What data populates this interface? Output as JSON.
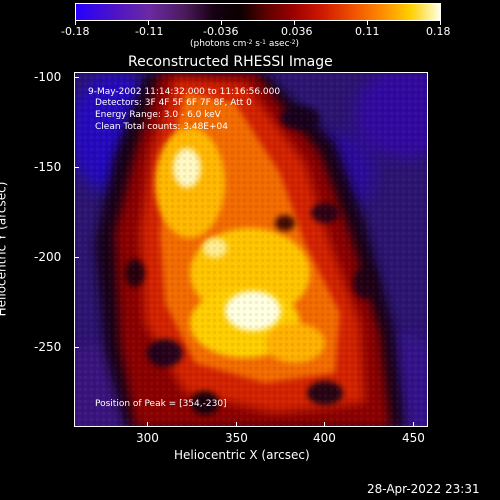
{
  "colorbar": {
    "tick_labels": [
      "-0.18",
      "-0.11",
      "-0.036",
      "0.036",
      "0.11",
      "0.18"
    ],
    "units_text": "(photons cm",
    "units_sup1": "-2",
    "units_mid1": " s",
    "units_sup2": "-1",
    "units_mid2": " asec",
    "units_sup3": "-2",
    "units_end": ")"
  },
  "plot": {
    "title": "Reconstructed RHESSI Image",
    "x_title": "Heliocentric X (arcsec)",
    "y_title": "Heliocentric Y (arcsec)",
    "x_ticks": [
      "300",
      "350",
      "400",
      "450"
    ],
    "y_ticks": [
      "-100",
      "-150",
      "-200",
      "-250"
    ],
    "annotations": [
      "9-May-2002 11:14:32.000 to 11:16:56.000",
      "Detectors: 3F 4F 5F 6F 7F 8F, Att 0",
      "Energy Range: 3.0 - 6.0 keV",
      "Clean    Total counts: 3.48E+04"
    ],
    "peak_text": "Position of Peak = [354,-230]"
  },
  "footer": {
    "timestamp": "28-Apr-2022 23:31"
  },
  "colors": {
    "background": "#000000",
    "text": "#ffffff",
    "map_low": "#2600ff",
    "map_high": "#ffffe5"
  }
}
